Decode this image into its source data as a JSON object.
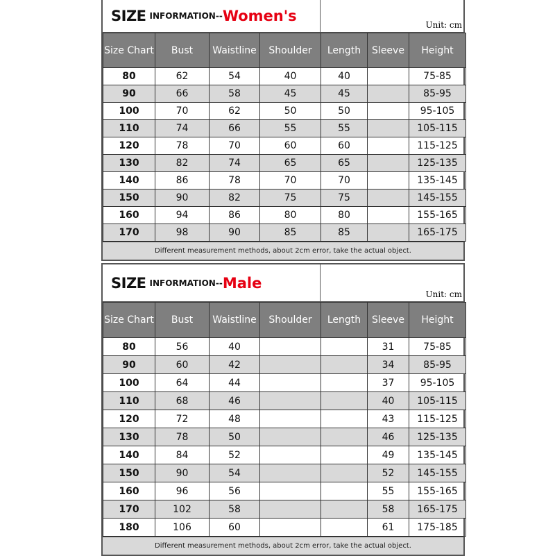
{
  "columns": [
    "Size Chart",
    "Bust",
    "Waistline",
    "Shoulder",
    "Length",
    "Sleeve",
    "Height"
  ],
  "unit": "Unit: cm",
  "note": "Different measurement methods, about 2cm error, take the actual object.",
  "title_size": "SIZE",
  "title_info": "INFORMATION--",
  "colors": {
    "header_bg": "#7f7f7f",
    "alt_row": "#d9d9d9",
    "accent": "#e60012"
  },
  "womens": {
    "gender": "Women's",
    "rows": [
      [
        "80",
        "62",
        "54",
        "40",
        "40",
        "",
        "75-85"
      ],
      [
        "90",
        "66",
        "58",
        "45",
        "45",
        "",
        "85-95"
      ],
      [
        "100",
        "70",
        "62",
        "50",
        "50",
        "",
        "95-105"
      ],
      [
        "110",
        "74",
        "66",
        "55",
        "55",
        "",
        "105-115"
      ],
      [
        "120",
        "78",
        "70",
        "60",
        "60",
        "",
        "115-125"
      ],
      [
        "130",
        "82",
        "74",
        "65",
        "65",
        "",
        "125-135"
      ],
      [
        "140",
        "86",
        "78",
        "70",
        "70",
        "",
        "135-145"
      ],
      [
        "150",
        "90",
        "82",
        "75",
        "75",
        "",
        "145-155"
      ],
      [
        "160",
        "94",
        "86",
        "80",
        "80",
        "",
        "155-165"
      ],
      [
        "170",
        "98",
        "90",
        "85",
        "85",
        "",
        "165-175"
      ]
    ]
  },
  "male": {
    "gender": "Male",
    "rows": [
      [
        "80",
        "56",
        "40",
        "",
        "",
        "31",
        "75-85"
      ],
      [
        "90",
        "60",
        "42",
        "",
        "",
        "34",
        "85-95"
      ],
      [
        "100",
        "64",
        "44",
        "",
        "",
        "37",
        "95-105"
      ],
      [
        "110",
        "68",
        "46",
        "",
        "",
        "40",
        "105-115"
      ],
      [
        "120",
        "72",
        "48",
        "",
        "",
        "43",
        "115-125"
      ],
      [
        "130",
        "78",
        "50",
        "",
        "",
        "46",
        "125-135"
      ],
      [
        "140",
        "84",
        "52",
        "",
        "",
        "49",
        "135-145"
      ],
      [
        "150",
        "90",
        "54",
        "",
        "",
        "52",
        "145-155"
      ],
      [
        "160",
        "96",
        "56",
        "",
        "",
        "55",
        "155-165"
      ],
      [
        "170",
        "102",
        "58",
        "",
        "",
        "58",
        "165-175"
      ],
      [
        "180",
        "106",
        "60",
        "",
        "",
        "61",
        "175-185"
      ]
    ]
  }
}
